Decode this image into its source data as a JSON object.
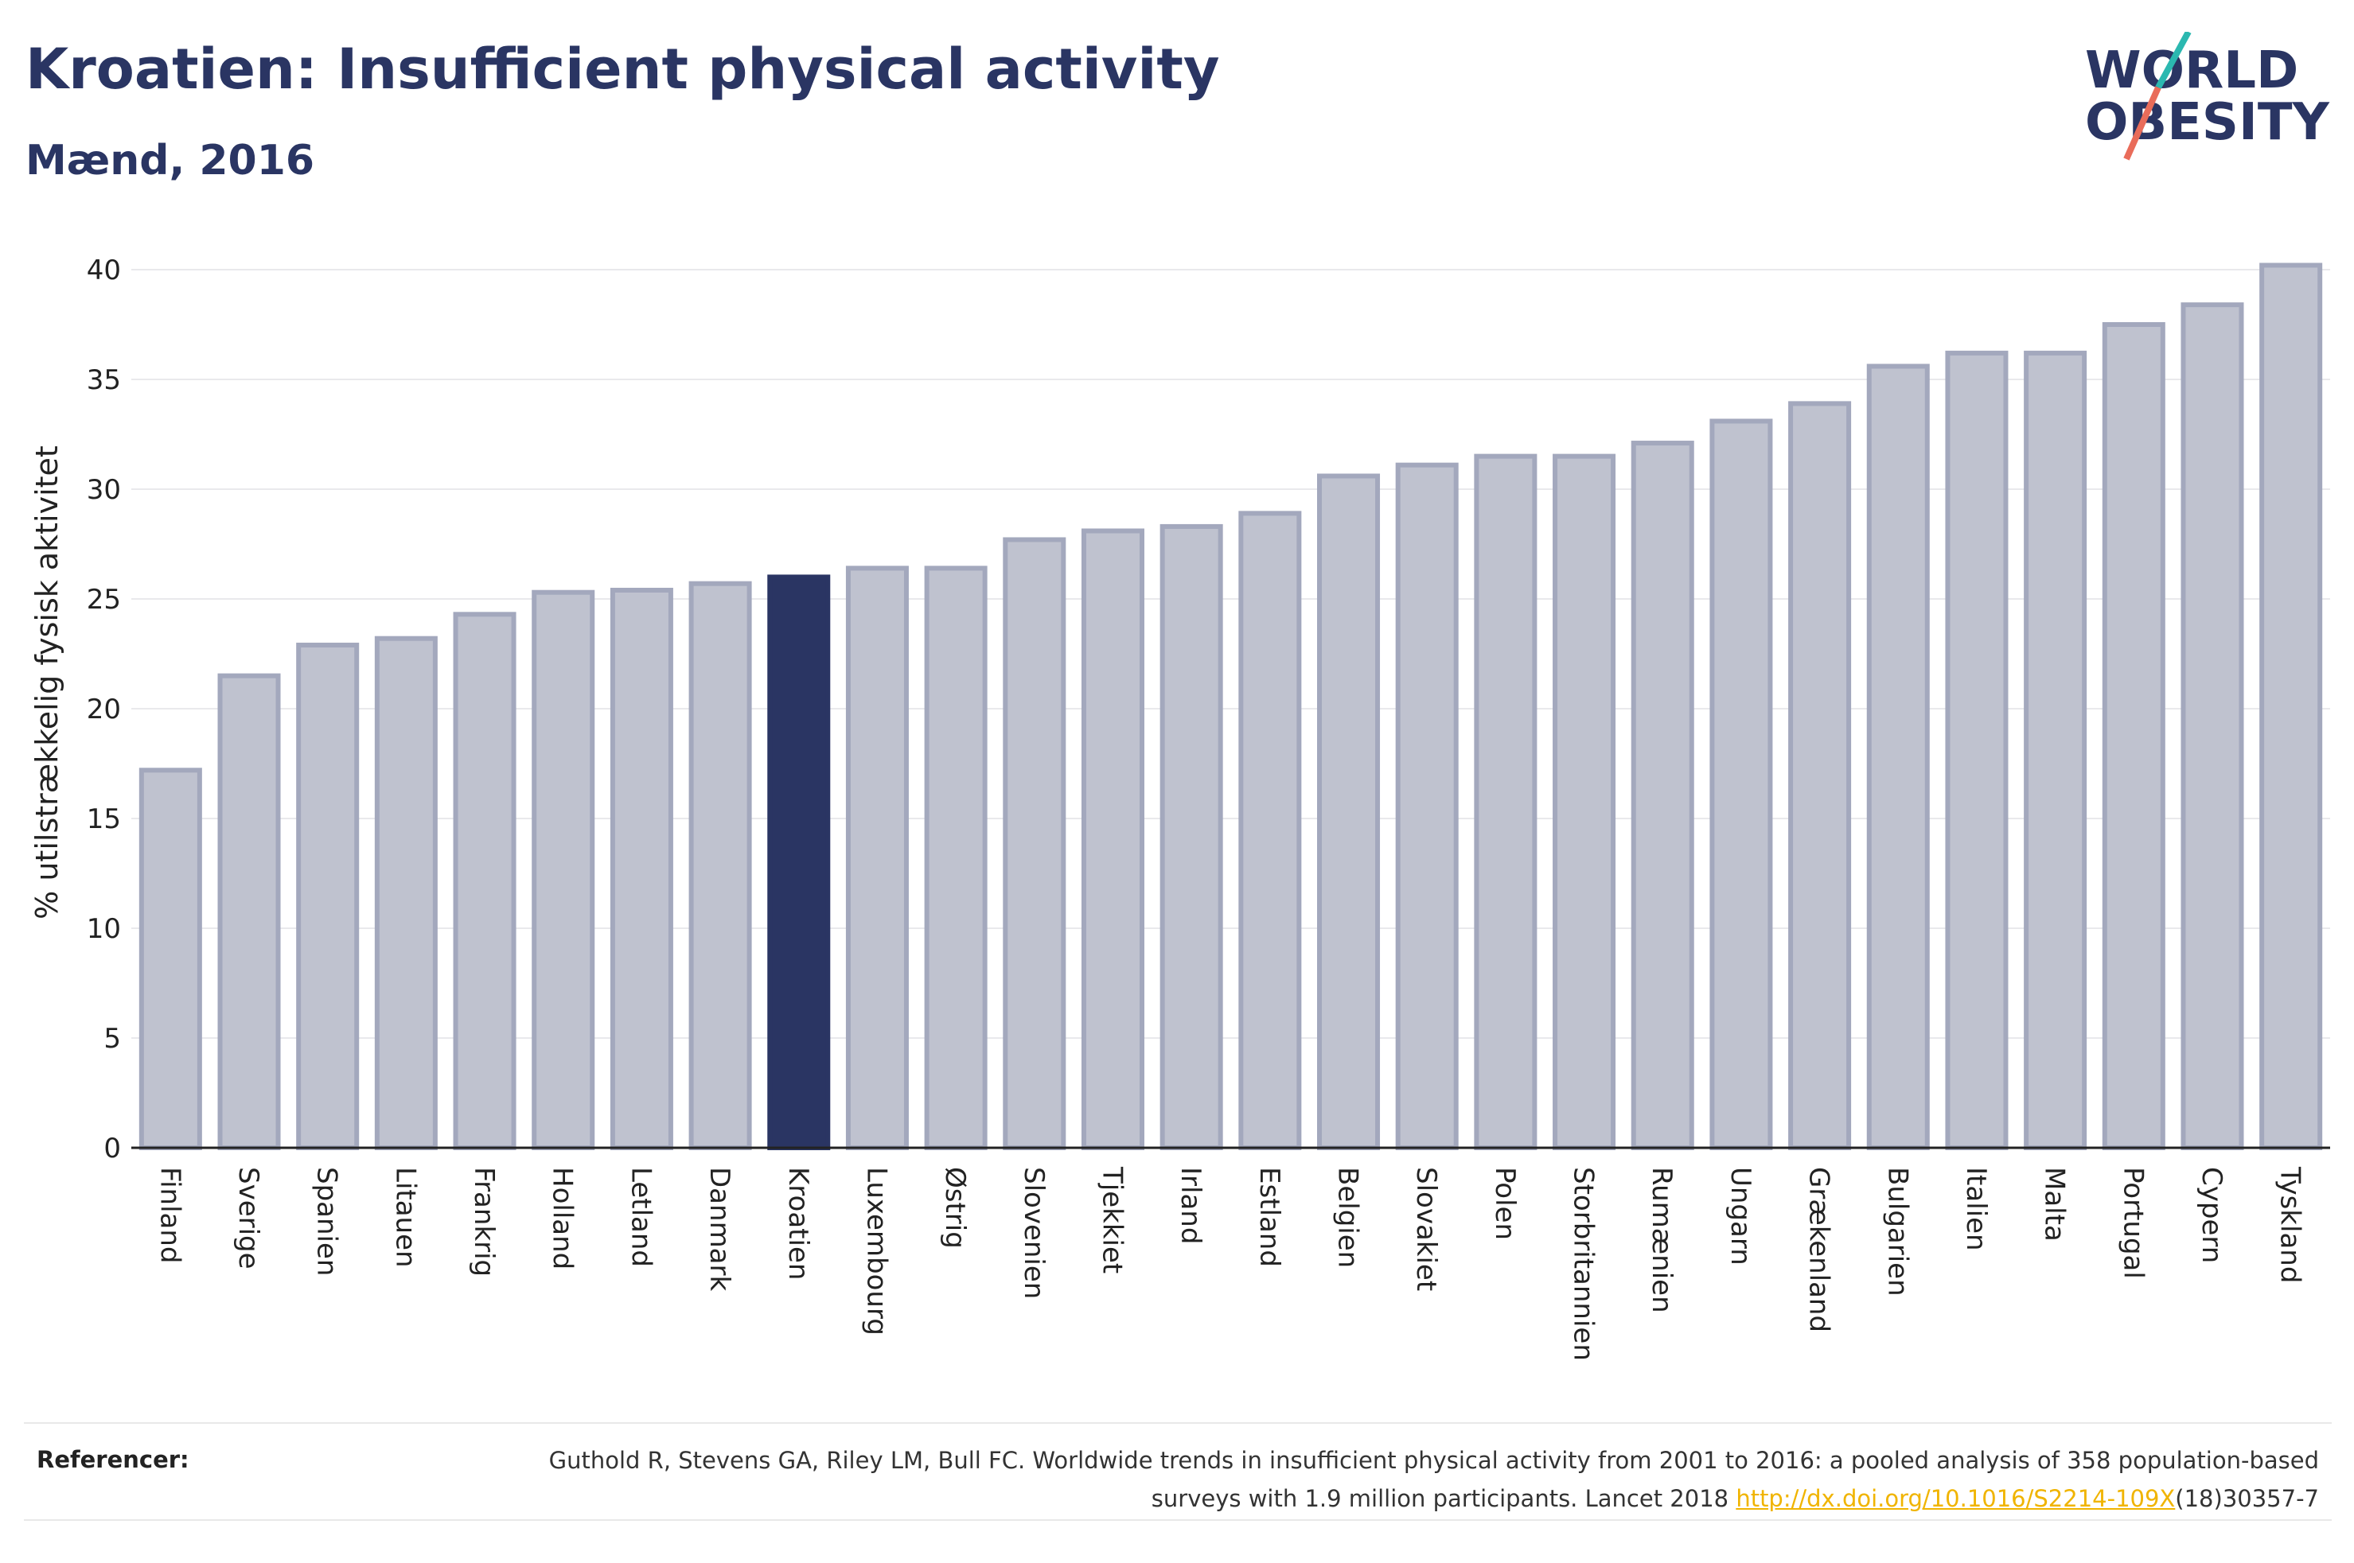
{
  "title": "Kroatien: Insufficient physical activity",
  "subtitle": "Mænd, 2016",
  "logo": {
    "line1": "WORLD",
    "line2": "OBESITY",
    "accent_colors": [
      "#2bb8b0",
      "#e96c5a"
    ]
  },
  "colors": {
    "highlight": "#2a3563",
    "bar_fill": "#bfc2cf",
    "bar_stroke": "#a3a8bd"
  },
  "chart_data": {
    "type": "bar",
    "ylabel": "% utilstrækkelig fysisk aktivitet",
    "ylim": [
      0,
      42
    ],
    "yticks": [
      0,
      5,
      10,
      15,
      20,
      25,
      30,
      35,
      40
    ],
    "grid": true,
    "highlight": "Kroatien",
    "categories": [
      "Finland",
      "Sverige",
      "Spanien",
      "Litauen",
      "Frankrig",
      "Holland",
      "Letland",
      "Danmark",
      "Kroatien",
      "Luxembourg",
      "Østrig",
      "Slovenien",
      "Tjekkiet",
      "Irland",
      "Estland",
      "Belgien",
      "Slovakiet",
      "Polen",
      "Storbritannien",
      "Rumænien",
      "Ungarn",
      "Grækenland",
      "Bulgarien",
      "Italien",
      "Malta",
      "Portugal",
      "Cypern",
      "Tyskland"
    ],
    "values": [
      17.2,
      21.5,
      22.9,
      23.2,
      24.3,
      25.3,
      25.4,
      25.7,
      26.0,
      26.4,
      26.4,
      27.7,
      28.1,
      28.3,
      28.9,
      30.6,
      31.1,
      31.5,
      31.5,
      32.1,
      33.1,
      33.9,
      35.6,
      36.2,
      36.2,
      37.5,
      38.4,
      40.2
    ]
  },
  "references": {
    "label": "Referencer:",
    "text_before_link": "Guthold R, Stevens GA, Riley LM, Bull FC. Worldwide trends in insufficient physical activity from 2001 to 2016: a pooled analysis of 358 population-based surveys with 1.9 million participants. Lancet 2018 ",
    "link_text": "http://dx.doi.org/10.1016/S2214-109X",
    "text_after_link": "(18)30357-7"
  }
}
